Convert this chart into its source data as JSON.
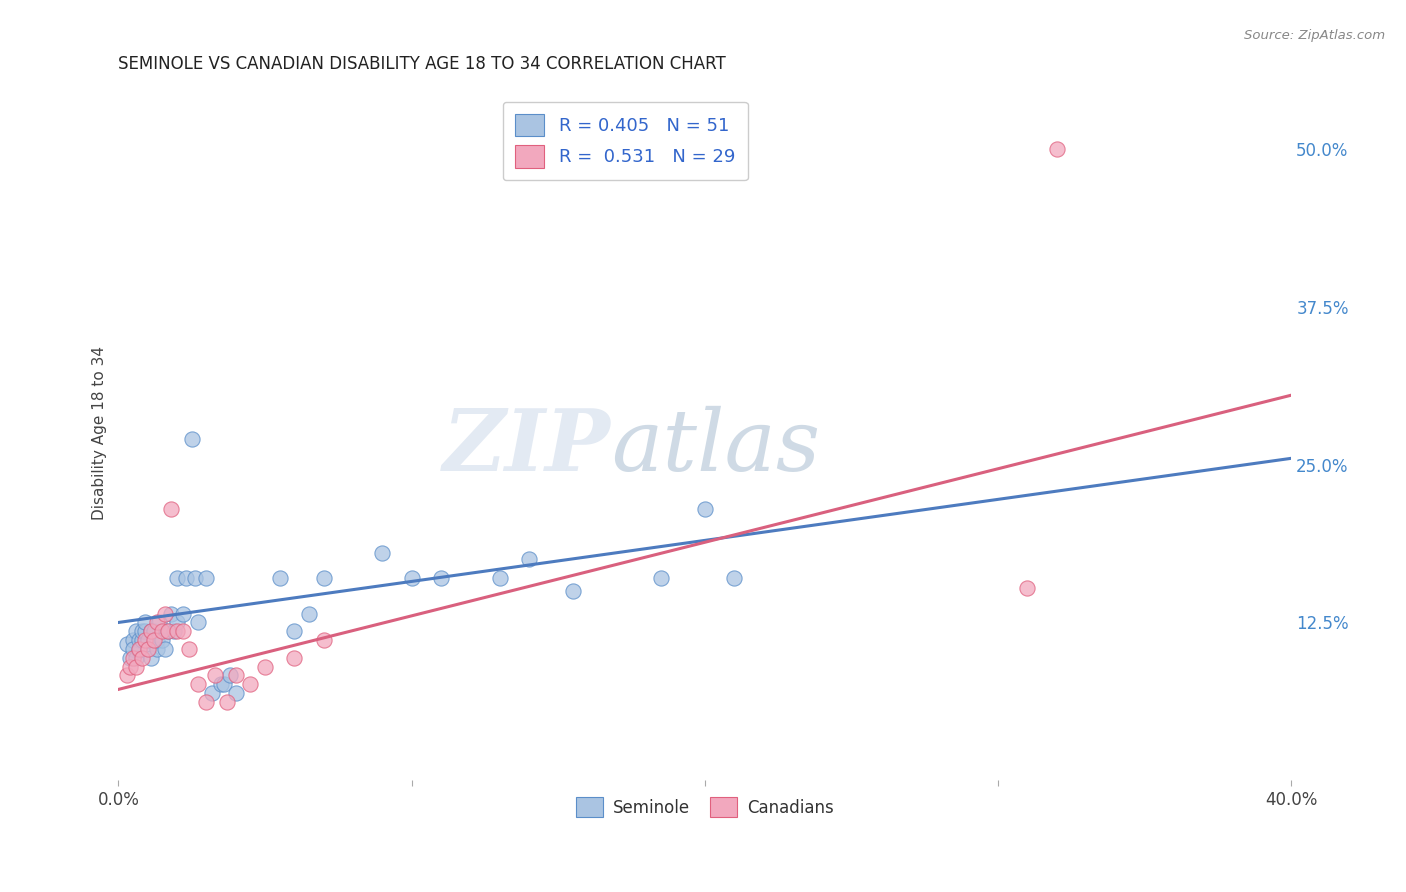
{
  "title": "SEMINOLE VS CANADIAN DISABILITY AGE 18 TO 34 CORRELATION CHART",
  "source": "Source: ZipAtlas.com",
  "ylabel": "Disability Age 18 to 34",
  "xlim": [
    0.0,
    0.4
  ],
  "ylim": [
    0.0,
    0.55
  ],
  "xticks": [
    0.0,
    0.1,
    0.2,
    0.3,
    0.4
  ],
  "xticklabels": [
    "0.0%",
    "",
    "",
    "",
    "40.0%"
  ],
  "yticks_right": [
    0.125,
    0.25,
    0.375,
    0.5
  ],
  "yticklabels_right": [
    "12.5%",
    "25.0%",
    "37.5%",
    "50.0%"
  ],
  "legend_r1": "R = 0.405",
  "legend_n1": "N = 51",
  "legend_r2": "R =  0.531",
  "legend_n2": "N = 29",
  "seminole_color": "#aac4e2",
  "canadian_color": "#f2a8be",
  "seminole_edge_color": "#5b8ec9",
  "canadian_edge_color": "#e0607e",
  "seminole_line_color": "#4d7bbf",
  "canadian_line_color": "#d9607e",
  "seminole_scatter": [
    [
      0.003,
      0.108
    ],
    [
      0.004,
      0.097
    ],
    [
      0.005,
      0.111
    ],
    [
      0.005,
      0.104
    ],
    [
      0.006,
      0.118
    ],
    [
      0.006,
      0.097
    ],
    [
      0.007,
      0.111
    ],
    [
      0.007,
      0.103
    ],
    [
      0.008,
      0.111
    ],
    [
      0.008,
      0.118
    ],
    [
      0.009,
      0.118
    ],
    [
      0.009,
      0.125
    ],
    [
      0.01,
      0.104
    ],
    [
      0.01,
      0.111
    ],
    [
      0.011,
      0.118
    ],
    [
      0.011,
      0.097
    ],
    [
      0.012,
      0.118
    ],
    [
      0.013,
      0.104
    ],
    [
      0.013,
      0.111
    ],
    [
      0.014,
      0.125
    ],
    [
      0.015,
      0.111
    ],
    [
      0.016,
      0.104
    ],
    [
      0.017,
      0.118
    ],
    [
      0.018,
      0.132
    ],
    [
      0.019,
      0.118
    ],
    [
      0.02,
      0.125
    ],
    [
      0.02,
      0.16
    ],
    [
      0.022,
      0.132
    ],
    [
      0.023,
      0.16
    ],
    [
      0.025,
      0.27
    ],
    [
      0.026,
      0.16
    ],
    [
      0.027,
      0.125
    ],
    [
      0.03,
      0.16
    ],
    [
      0.032,
      0.069
    ],
    [
      0.035,
      0.076
    ],
    [
      0.036,
      0.076
    ],
    [
      0.038,
      0.083
    ],
    [
      0.04,
      0.069
    ],
    [
      0.055,
      0.16
    ],
    [
      0.06,
      0.118
    ],
    [
      0.065,
      0.132
    ],
    [
      0.07,
      0.16
    ],
    [
      0.09,
      0.18
    ],
    [
      0.1,
      0.16
    ],
    [
      0.11,
      0.16
    ],
    [
      0.13,
      0.16
    ],
    [
      0.14,
      0.175
    ],
    [
      0.155,
      0.15
    ],
    [
      0.185,
      0.16
    ],
    [
      0.2,
      0.215
    ],
    [
      0.21,
      0.16
    ]
  ],
  "canadian_scatter": [
    [
      0.003,
      0.083
    ],
    [
      0.004,
      0.09
    ],
    [
      0.005,
      0.097
    ],
    [
      0.006,
      0.09
    ],
    [
      0.007,
      0.104
    ],
    [
      0.008,
      0.097
    ],
    [
      0.009,
      0.111
    ],
    [
      0.01,
      0.104
    ],
    [
      0.011,
      0.118
    ],
    [
      0.012,
      0.111
    ],
    [
      0.013,
      0.125
    ],
    [
      0.015,
      0.118
    ],
    [
      0.016,
      0.132
    ],
    [
      0.017,
      0.118
    ],
    [
      0.018,
      0.215
    ],
    [
      0.02,
      0.118
    ],
    [
      0.022,
      0.118
    ],
    [
      0.024,
      0.104
    ],
    [
      0.027,
      0.076
    ],
    [
      0.03,
      0.062
    ],
    [
      0.033,
      0.083
    ],
    [
      0.037,
      0.062
    ],
    [
      0.04,
      0.083
    ],
    [
      0.045,
      0.076
    ],
    [
      0.05,
      0.09
    ],
    [
      0.06,
      0.097
    ],
    [
      0.07,
      0.111
    ],
    [
      0.31,
      0.152
    ],
    [
      0.32,
      0.5
    ]
  ],
  "watermark_text": "ZIP",
  "watermark_text2": "atlas",
  "background_color": "#ffffff",
  "grid_color": "#d8d8d8"
}
